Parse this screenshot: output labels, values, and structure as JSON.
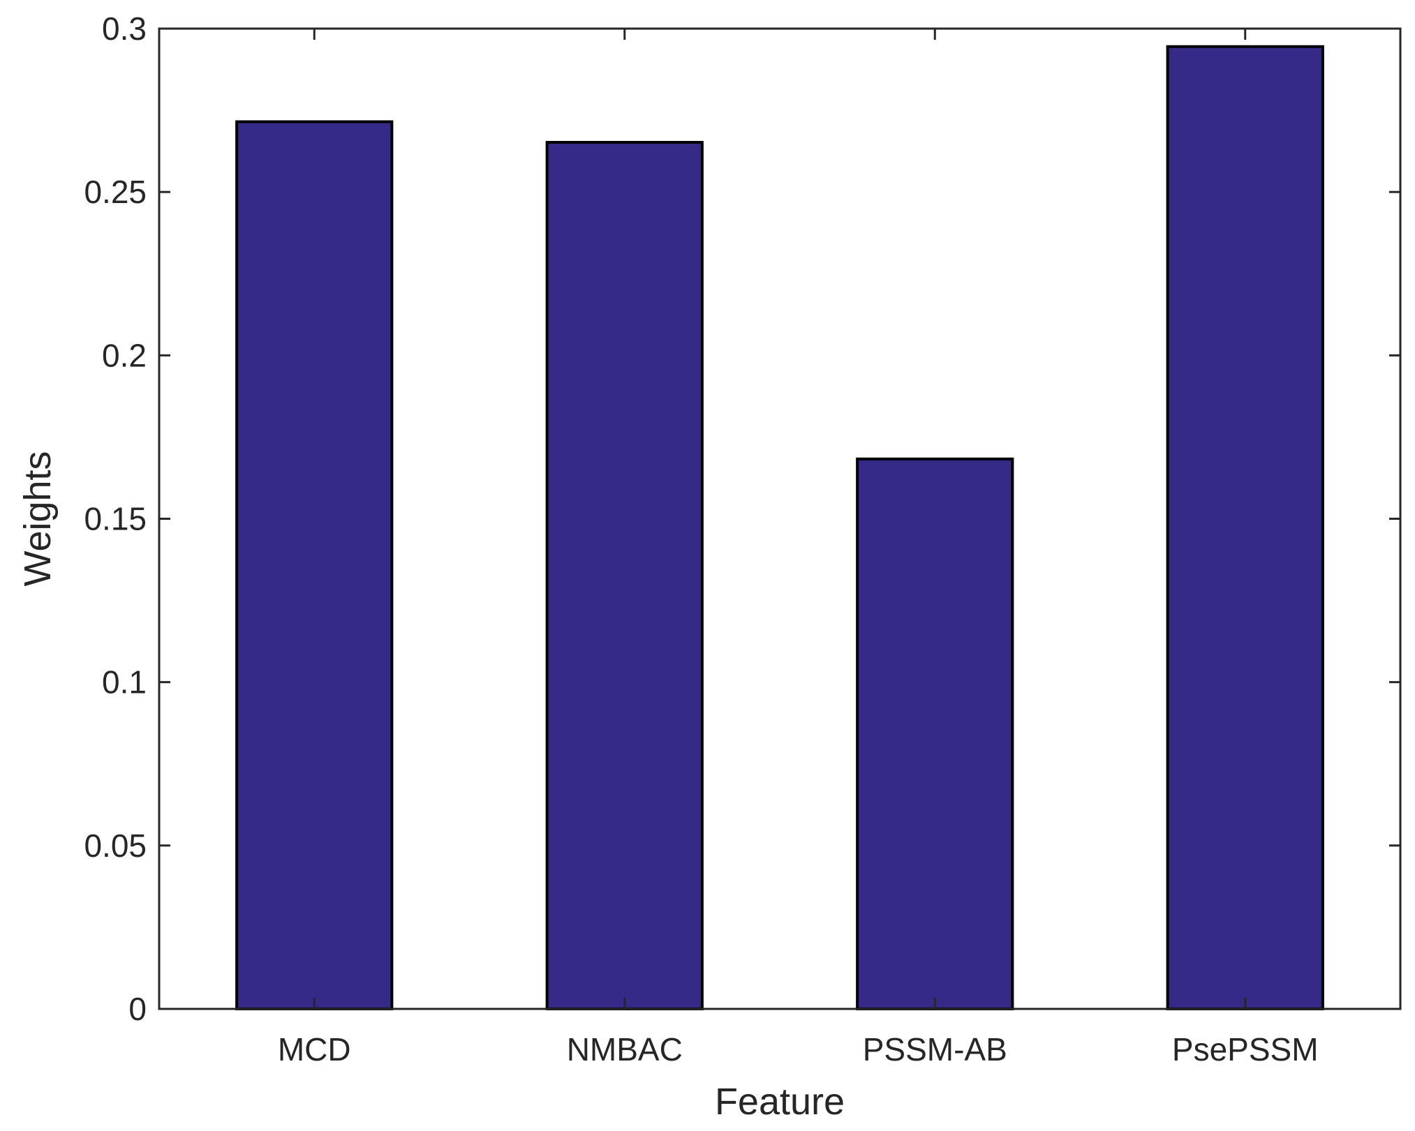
{
  "chart_data": {
    "type": "bar",
    "title": "",
    "xlabel": "Feature",
    "ylabel": "Weights",
    "categories": [
      "MCD",
      "NMBAC",
      "PSSM-AB",
      "PsePSSM"
    ],
    "values": [
      0.2715,
      0.2652,
      0.1683,
      0.2945
    ],
    "ylim": [
      0,
      0.3
    ],
    "yticks": [
      0,
      0.05,
      0.1,
      0.15,
      0.2,
      0.25,
      0.3
    ],
    "ytick_labels": [
      "0",
      "0.05",
      "0.1",
      "0.15",
      "0.2",
      "0.25",
      "0.3"
    ],
    "bar_color": "#352a87",
    "grid": false,
    "box": true
  }
}
